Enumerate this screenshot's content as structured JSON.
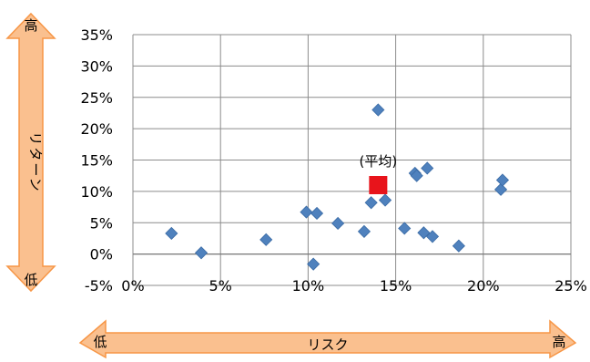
{
  "chart_data": {
    "type": "scatter",
    "xlim": [
      0,
      25
    ],
    "ylim": [
      -5,
      35
    ],
    "x_ticks": [
      0,
      5,
      10,
      15,
      20,
      25
    ],
    "y_ticks": [
      -5,
      0,
      5,
      10,
      15,
      20,
      25,
      30,
      35
    ],
    "x_tick_labels": [
      "0%",
      "5%",
      "10%",
      "15%",
      "20%",
      "25%"
    ],
    "y_tick_labels": [
      "-5%",
      "0%",
      "5%",
      "10%",
      "15%",
      "20%",
      "25%",
      "30%",
      "35%"
    ],
    "grid": true,
    "series": [
      {
        "marker": "diamond",
        "color": "#4F81BD",
        "points": [
          {
            "x": 2.2,
            "y": 3.3
          },
          {
            "x": 3.9,
            "y": 0.2
          },
          {
            "x": 7.6,
            "y": 2.3
          },
          {
            "x": 9.9,
            "y": 6.7
          },
          {
            "x": 10.3,
            "y": -1.6
          },
          {
            "x": 10.5,
            "y": 6.5
          },
          {
            "x": 11.7,
            "y": 4.9
          },
          {
            "x": 13.2,
            "y": 3.6
          },
          {
            "x": 13.6,
            "y": 8.2
          },
          {
            "x": 14.0,
            "y": 23.0
          },
          {
            "x": 14.4,
            "y": 8.6
          },
          {
            "x": 15.5,
            "y": 4.1
          },
          {
            "x": 16.1,
            "y": 12.9
          },
          {
            "x": 16.2,
            "y": 12.5
          },
          {
            "x": 16.6,
            "y": 3.4
          },
          {
            "x": 16.8,
            "y": 13.7
          },
          {
            "x": 17.1,
            "y": 2.8
          },
          {
            "x": 18.6,
            "y": 1.3
          },
          {
            "x": 21.0,
            "y": 10.3
          },
          {
            "x": 21.1,
            "y": 11.8
          }
        ]
      },
      {
        "marker": "square",
        "color": "#E8141B",
        "points": [
          {
            "x": 14.0,
            "y": 11.0
          }
        ]
      }
    ],
    "annotation": "(平均)"
  },
  "axes_arrows": {
    "vertical": {
      "top": "高",
      "middle": "リターン",
      "bottom": "低"
    },
    "horizontal": {
      "left": "低",
      "middle": "リスク",
      "right": "高"
    },
    "fill_color": "#FAC08F",
    "stroke_color": "#F79646"
  }
}
